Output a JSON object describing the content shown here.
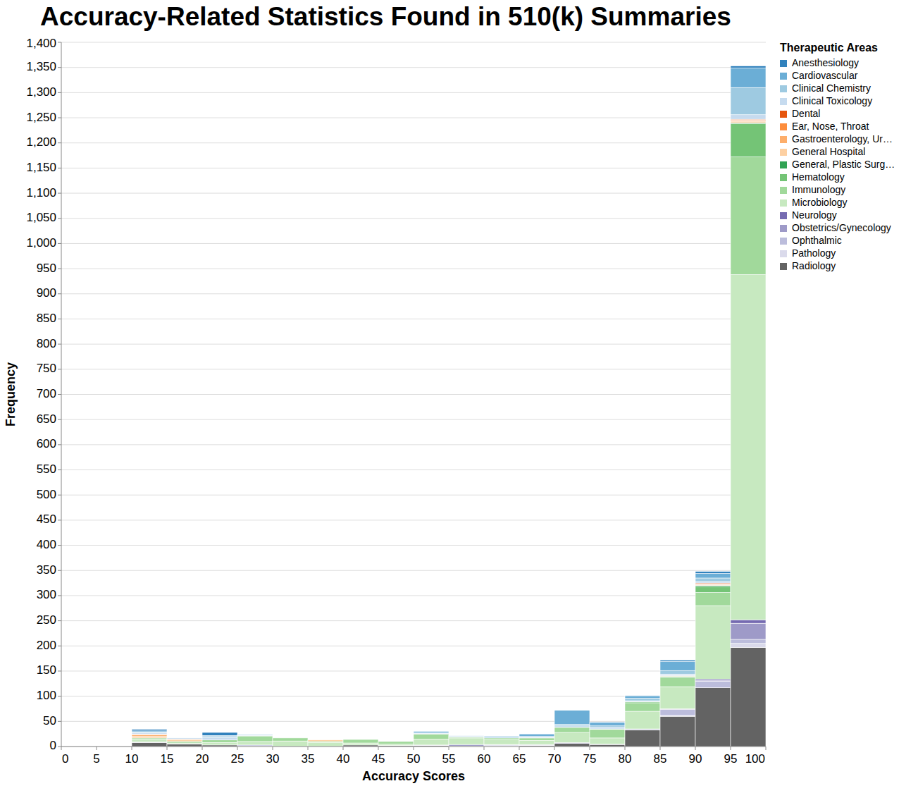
{
  "chart_data": {
    "type": "histogram",
    "title": "Accuracy-Related Statistics Found in 510(k) Summaries",
    "x_label": "Accuracy Scores",
    "y_label": "Frequency",
    "legend_title": "Therapeutic Areas",
    "legend": "right",
    "stacked": true,
    "grid": true,
    "bins": [
      0,
      5,
      10,
      15,
      20,
      25,
      30,
      35,
      40,
      45,
      50,
      55,
      60,
      65,
      70,
      75,
      80,
      85,
      90,
      95,
      100
    ],
    "xlim": [
      0,
      100
    ],
    "xticks": [
      0,
      5,
      10,
      15,
      20,
      25,
      30,
      35,
      40,
      45,
      50,
      55,
      60,
      65,
      70,
      75,
      80,
      85,
      90,
      95,
      100
    ],
    "ylim": [
      0,
      1400
    ],
    "yticks": [
      0,
      50,
      100,
      150,
      200,
      250,
      300,
      350,
      400,
      450,
      500,
      550,
      600,
      650,
      700,
      750,
      800,
      850,
      900,
      950,
      {
        "value": 1000,
        "label": "1,000"
      },
      {
        "value": 1050,
        "label": "1,050"
      },
      {
        "value": 1100,
        "label": "1,100"
      },
      {
        "value": 1150,
        "label": "1,150"
      },
      {
        "value": 1200,
        "label": "1,200"
      },
      {
        "value": 1250,
        "label": "1,250"
      },
      {
        "value": 1300,
        "label": "1,300"
      },
      {
        "value": 1350,
        "label": "1,350"
      },
      {
        "value": 1400,
        "label": "1,400"
      }
    ],
    "series": [
      {
        "name": "Anesthesiology",
        "color": "#3182bd",
        "values": [
          0,
          0,
          3,
          0,
          6,
          0,
          0,
          0,
          0,
          0,
          0,
          0,
          1,
          0,
          0,
          0,
          1,
          3,
          4,
          4
        ]
      },
      {
        "name": "Cardiovascular",
        "color": "#6baed6",
        "values": [
          0,
          0,
          2,
          0,
          2,
          1,
          0,
          0,
          0,
          0,
          3,
          1,
          2,
          5,
          28,
          7,
          5,
          18,
          9,
          39
        ]
      },
      {
        "name": "Clinical Chemistry",
        "color": "#9ecae1",
        "values": [
          0,
          0,
          2,
          0,
          2,
          1,
          0,
          0,
          0,
          0,
          1,
          0,
          0,
          0,
          3,
          3,
          5,
          7,
          7,
          54
        ]
      },
      {
        "name": "Clinical Toxicology",
        "color": "#c6dbef",
        "values": [
          0,
          0,
          2,
          2,
          5,
          1,
          0,
          0,
          0,
          0,
          1,
          2,
          1,
          2,
          3,
          3,
          2,
          3,
          3,
          9
        ]
      },
      {
        "name": "Dental",
        "color": "#e6550d",
        "values": [
          0,
          0,
          1,
          0,
          0,
          0,
          0,
          0,
          0,
          0,
          0,
          0,
          0,
          0,
          0,
          0,
          0,
          0,
          2,
          2
        ]
      },
      {
        "name": "Ear, Nose, Throat",
        "color": "#fd8d3c",
        "values": [
          0,
          0,
          1,
          0,
          0,
          0,
          0,
          0,
          0,
          0,
          0,
          0,
          0,
          0,
          0,
          0,
          0,
          0,
          1,
          1
        ]
      },
      {
        "name": "Gastroenterology, Ur…",
        "color": "#fdae6b",
        "values": [
          0,
          0,
          3,
          2,
          0,
          0,
          0,
          0,
          0,
          0,
          0,
          0,
          0,
          0,
          0,
          0,
          0,
          1,
          1,
          2
        ]
      },
      {
        "name": "General Hospital",
        "color": "#fdd0a2",
        "values": [
          0,
          0,
          3,
          3,
          0,
          0,
          0,
          3,
          0,
          0,
          0,
          0,
          0,
          1,
          0,
          0,
          0,
          1,
          1,
          2
        ]
      },
      {
        "name": "General, Plastic Surg…",
        "color": "#31a354",
        "values": [
          0,
          0,
          0,
          0,
          0,
          0,
          0,
          0,
          0,
          0,
          0,
          0,
          0,
          0,
          0,
          0,
          0,
          0,
          2,
          2
        ]
      },
      {
        "name": "Hematology",
        "color": "#74c476",
        "values": [
          0,
          0,
          0,
          0,
          0,
          0,
          0,
          0,
          0,
          0,
          0,
          0,
          0,
          0,
          0,
          1,
          2,
          2,
          12,
          66
        ]
      },
      {
        "name": "Immunology",
        "color": "#a1d99b",
        "values": [
          0,
          0,
          2,
          3,
          5,
          11,
          6,
          2,
          7,
          5,
          10,
          2,
          3,
          5,
          10,
          17,
          17,
          18,
          26,
          234
        ]
      },
      {
        "name": "Microbiology",
        "color": "#c7e9c0",
        "values": [
          0,
          0,
          6,
          2,
          5,
          7,
          11,
          8,
          4,
          3,
          12,
          13,
          10,
          8,
          20,
          12,
          35,
          44,
          146,
          686
        ]
      },
      {
        "name": "Neurology",
        "color": "#756bb1",
        "values": [
          0,
          0,
          0,
          0,
          0,
          0,
          0,
          0,
          0,
          0,
          0,
          0,
          0,
          0,
          0,
          0,
          0,
          0,
          3,
          7
        ]
      },
      {
        "name": "Obstetrics/Gynecology",
        "color": "#9e9ac8",
        "values": [
          0,
          0,
          0,
          0,
          0,
          0,
          0,
          0,
          0,
          0,
          0,
          3,
          1,
          0,
          2,
          0,
          0,
          1,
          1,
          32
        ]
      },
      {
        "name": "Ophthalmic",
        "color": "#bcbddc",
        "values": [
          0,
          0,
          0,
          0,
          0,
          2,
          0,
          0,
          0,
          0,
          0,
          0,
          0,
          0,
          0,
          0,
          2,
          12,
          13,
          8
        ]
      },
      {
        "name": "Pathology",
        "color": "#dadaeb",
        "values": [
          0,
          0,
          1,
          0,
          0,
          0,
          0,
          0,
          0,
          0,
          1,
          0,
          2,
          2,
          0,
          1,
          0,
          2,
          0,
          8
        ]
      },
      {
        "name": "Radiology",
        "color": "#636363",
        "values": [
          0,
          0,
          8,
          5,
          3,
          1,
          0,
          0,
          3,
          2,
          2,
          1,
          1,
          2,
          6,
          4,
          33,
          60,
          117,
          197
        ]
      }
    ]
  }
}
